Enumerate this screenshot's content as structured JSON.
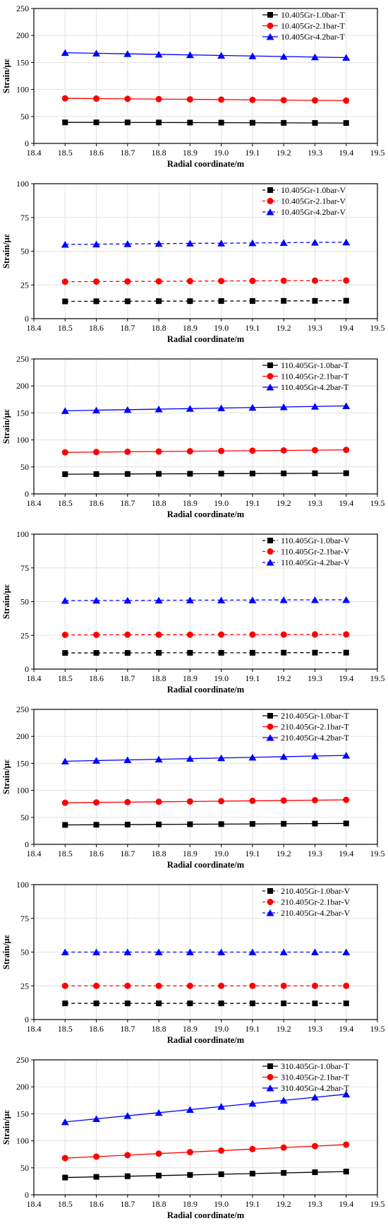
{
  "chart_data": [
    {
      "type": "line",
      "xlabel": "Radial coordinate/m",
      "ylabel": "Strain/με",
      "xlim": [
        18.4,
        19.5
      ],
      "ylim": [
        0,
        250
      ],
      "x_ticks": [
        "18.4",
        "18.5",
        "18.6",
        "18.7",
        "18.8",
        "18.9",
        "19.0",
        "19.1",
        "19.2",
        "19.3",
        "19.4",
        "19.5"
      ],
      "y_ticks": [
        "0",
        "50",
        "100",
        "150",
        "200",
        "250"
      ],
      "grid": true,
      "legend_position": "top-right",
      "line_style": "solid",
      "x": [
        18.5,
        18.6,
        18.7,
        18.8,
        18.9,
        19.0,
        19.1,
        19.2,
        19.3,
        19.4
      ],
      "series": [
        {
          "name": "10.405Gr-1.0bar-T",
          "color": "#000000",
          "marker": "square",
          "values": [
            39,
            39,
            38.9,
            38.8,
            38.6,
            38.5,
            38.3,
            38.1,
            38,
            37.8
          ]
        },
        {
          "name": "10.405Gr-2.1bar-T",
          "color": "#ff0000",
          "marker": "circle",
          "values": [
            83.5,
            83.1,
            82.6,
            82.1,
            81.7,
            81.2,
            80.7,
            80.2,
            79.8,
            79.3
          ]
        },
        {
          "name": "10.405Gr-4.2bar-T",
          "color": "#0000ff",
          "marker": "triangle",
          "values": [
            168,
            167,
            166,
            165,
            164,
            163,
            162,
            161,
            160,
            159
          ]
        }
      ]
    },
    {
      "type": "line",
      "xlabel": "Radial coordinate/m",
      "ylabel": "Strain/με",
      "xlim": [
        18.4,
        19.5
      ],
      "ylim": [
        0,
        100
      ],
      "x_ticks": [
        "18.4",
        "18.5",
        "18.6",
        "18.7",
        "18.8",
        "18.9",
        "19.0",
        "19.1",
        "19.2",
        "19.3",
        "19.4",
        "19.5"
      ],
      "y_ticks": [
        "0",
        "25",
        "50",
        "75",
        "100"
      ],
      "grid": true,
      "legend_position": "top-right",
      "line_style": "dashed",
      "x": [
        18.5,
        18.6,
        18.7,
        18.8,
        18.9,
        19.0,
        19.1,
        19.2,
        19.3,
        19.4
      ],
      "series": [
        {
          "name": "10.405Gr-1.0bar-V",
          "color": "#000000",
          "marker": "square",
          "values": [
            12.8,
            12.9,
            12.9,
            13,
            13,
            13.1,
            13.1,
            13.2,
            13.2,
            13.3
          ]
        },
        {
          "name": "10.405Gr-2.1bar-V",
          "color": "#ff0000",
          "marker": "circle",
          "values": [
            27.4,
            27.5,
            27.6,
            27.7,
            27.8,
            27.9,
            28,
            28.1,
            28.2,
            28.3
          ]
        },
        {
          "name": "10.405Gr-4.2bar-V",
          "color": "#0000ff",
          "marker": "triangle",
          "values": [
            55,
            55.2,
            55.4,
            55.6,
            55.8,
            55.9,
            56.1,
            56.3,
            56.5,
            56.7
          ]
        }
      ]
    },
    {
      "type": "line",
      "xlabel": "Radial coordinate/m",
      "ylabel": "Strain/με",
      "xlim": [
        18.4,
        19.5
      ],
      "ylim": [
        0,
        250
      ],
      "x_ticks": [
        "18.4",
        "18.5",
        "18.6",
        "18.7",
        "18.8",
        "18.9",
        "19.0",
        "19.1",
        "19.2",
        "19.3",
        "19.4",
        "19.5"
      ],
      "y_ticks": [
        "0",
        "50",
        "100",
        "150",
        "200",
        "250"
      ],
      "grid": true,
      "legend_position": "top-right",
      "line_style": "solid",
      "x": [
        18.5,
        18.6,
        18.7,
        18.8,
        18.9,
        19.0,
        19.1,
        19.2,
        19.3,
        19.4
      ],
      "series": [
        {
          "name": "110.405Gr-1.0bar-T",
          "color": "#000000",
          "marker": "square",
          "values": [
            36.5,
            36.7,
            36.9,
            37.1,
            37.3,
            37.5,
            37.7,
            37.9,
            38.1,
            38.3
          ]
        },
        {
          "name": "110.405Gr-2.1bar-T",
          "color": "#ff0000",
          "marker": "circle",
          "values": [
            77,
            77.5,
            78,
            78.5,
            79,
            79.5,
            80,
            80.5,
            81,
            81.5
          ]
        },
        {
          "name": "110.405Gr-4.2bar-T",
          "color": "#0000ff",
          "marker": "triangle",
          "values": [
            154,
            155,
            156,
            157,
            158,
            159,
            160,
            161,
            162,
            163
          ]
        }
      ]
    },
    {
      "type": "line",
      "xlabel": "Radial coordinate/m",
      "ylabel": "Strain/με",
      "xlim": [
        18.4,
        19.5
      ],
      "ylim": [
        0,
        100
      ],
      "x_ticks": [
        "18.4",
        "18.5",
        "18.6",
        "18.7",
        "18.8",
        "18.9",
        "19.0",
        "19.1",
        "19.2",
        "19.3",
        "19.4",
        "19.5"
      ],
      "y_ticks": [
        "0",
        "25",
        "50",
        "75",
        "100"
      ],
      "grid": true,
      "legend_position": "top-right",
      "line_style": "dashed",
      "x": [
        18.5,
        18.6,
        18.7,
        18.8,
        18.9,
        19.0,
        19.1,
        19.2,
        19.3,
        19.4
      ],
      "series": [
        {
          "name": "110.405Gr-1.0bar-V",
          "color": "#000000",
          "marker": "square",
          "values": [
            12,
            12,
            12,
            12.1,
            12.1,
            12.1,
            12.1,
            12.2,
            12.2,
            12.2
          ]
        },
        {
          "name": "110.405Gr-2.1bar-V",
          "color": "#ff0000",
          "marker": "circle",
          "values": [
            25.4,
            25.4,
            25.5,
            25.5,
            25.5,
            25.6,
            25.6,
            25.6,
            25.7,
            25.7
          ]
        },
        {
          "name": "110.405Gr-4.2bar-V",
          "color": "#0000ff",
          "marker": "triangle",
          "values": [
            50.8,
            50.9,
            50.9,
            51,
            51.1,
            51.1,
            51.2,
            51.3,
            51.3,
            51.4
          ]
        }
      ]
    },
    {
      "type": "line",
      "xlabel": "Radial coordinate/m",
      "ylabel": "Strain/με",
      "xlim": [
        18.4,
        19.5
      ],
      "ylim": [
        0,
        250
      ],
      "x_ticks": [
        "18.4",
        "18.5",
        "18.6",
        "18.7",
        "18.8",
        "18.9",
        "19.0",
        "19.1",
        "19.2",
        "19.3",
        "19.4",
        "19.5"
      ],
      "y_ticks": [
        "0",
        "50",
        "100",
        "150",
        "200",
        "250"
      ],
      "grid": true,
      "legend_position": "top-right",
      "line_style": "solid",
      "x": [
        18.5,
        18.6,
        18.7,
        18.8,
        18.9,
        19.0,
        19.1,
        19.2,
        19.3,
        19.4
      ],
      "series": [
        {
          "name": "210.405Gr-1.0bar-T",
          "color": "#000000",
          "marker": "square",
          "values": [
            36,
            36.3,
            36.6,
            36.9,
            37.2,
            37.5,
            37.8,
            38.1,
            38.4,
            38.7
          ]
        },
        {
          "name": "210.405Gr-2.1bar-T",
          "color": "#ff0000",
          "marker": "circle",
          "values": [
            77,
            77.6,
            78.2,
            78.8,
            79.4,
            80,
            80.6,
            81.2,
            81.8,
            82.4
          ]
        },
        {
          "name": "210.405Gr-4.2bar-T",
          "color": "#0000ff",
          "marker": "triangle",
          "values": [
            154,
            155.2,
            156.4,
            157.6,
            158.8,
            160,
            161.2,
            162.4,
            163.6,
            164.8
          ]
        }
      ]
    },
    {
      "type": "line",
      "xlabel": "Radial coordinate/m",
      "ylabel": "Strain/με",
      "xlim": [
        18.4,
        19.5
      ],
      "ylim": [
        0,
        100
      ],
      "x_ticks": [
        "18.4",
        "18.5",
        "18.6",
        "18.7",
        "18.8",
        "18.9",
        "19.0",
        "19.1",
        "19.2",
        "19.3",
        "19.4",
        "19.5"
      ],
      "y_ticks": [
        "0",
        "25",
        "50",
        "75",
        "100"
      ],
      "grid": true,
      "legend_position": "top-right",
      "line_style": "dashed",
      "x": [
        18.5,
        18.6,
        18.7,
        18.8,
        18.9,
        19.0,
        19.1,
        19.2,
        19.3,
        19.4
      ],
      "series": [
        {
          "name": "210.405Gr-1.0bar-V",
          "color": "#000000",
          "marker": "square",
          "values": [
            12,
            12,
            12,
            12,
            12,
            12,
            12,
            12,
            12,
            12
          ]
        },
        {
          "name": "210.405Gr-2.1bar-V",
          "color": "#ff0000",
          "marker": "circle",
          "values": [
            25,
            25,
            25,
            25,
            25,
            25,
            25,
            25,
            25,
            25
          ]
        },
        {
          "name": "210.405Gr-4.2bar-V",
          "color": "#0000ff",
          "marker": "triangle",
          "values": [
            50,
            50,
            50,
            50,
            50,
            50,
            50,
            50,
            50,
            50
          ]
        }
      ]
    },
    {
      "type": "line",
      "xlabel": "Radial coordinate/m",
      "ylabel": "Strain/με",
      "xlim": [
        18.4,
        19.5
      ],
      "ylim": [
        0,
        250
      ],
      "x_ticks": [
        "18.4",
        "18.5",
        "18.6",
        "18.7",
        "18.8",
        "18.9",
        "19.0",
        "19.1",
        "19.2",
        "19.3",
        "19.4",
        "19.5"
      ],
      "y_ticks": [
        "0",
        "50",
        "100",
        "150",
        "200",
        "250"
      ],
      "grid": true,
      "legend_position": "top-right",
      "line_style": "solid",
      "x": [
        18.5,
        18.6,
        18.7,
        18.8,
        18.9,
        19.0,
        19.1,
        19.2,
        19.3,
        19.4
      ],
      "series": [
        {
          "name": "310.405Gr-1.0bar-T",
          "color": "#000000",
          "marker": "square",
          "values": [
            32,
            33.2,
            34.4,
            35.6,
            36.8,
            38.1,
            39.3,
            40.6,
            41.8,
            43
          ]
        },
        {
          "name": "310.405Gr-2.1bar-T",
          "color": "#ff0000",
          "marker": "circle",
          "values": [
            68,
            70.7,
            73.5,
            76.3,
            79.1,
            81.9,
            84.7,
            87.5,
            90.2,
            93
          ]
        },
        {
          "name": "310.405Gr-4.2bar-T",
          "color": "#0000ff",
          "marker": "triangle",
          "values": [
            135,
            140.7,
            146.4,
            152.1,
            157.8,
            163.5,
            169.2,
            174.9,
            180.6,
            186.3
          ]
        }
      ]
    }
  ]
}
